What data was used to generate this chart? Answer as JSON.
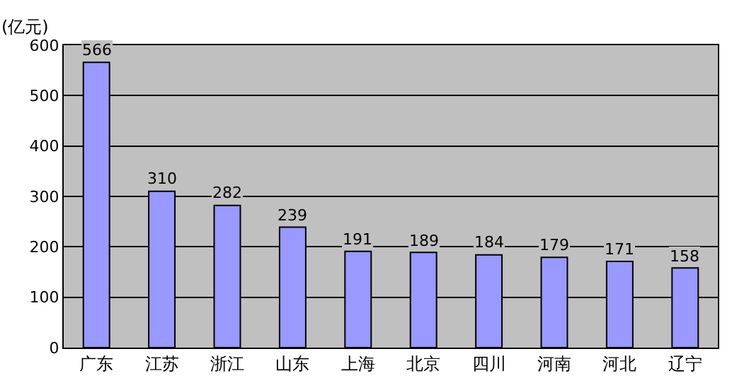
{
  "chart_data": {
    "type": "bar",
    "ylabel": "(亿元)",
    "categories": [
      "广东",
      "江苏",
      "浙江",
      "山东",
      "上海",
      "北京",
      "四川",
      "河南",
      "河北",
      "辽宁"
    ],
    "values": [
      566,
      310,
      282,
      239,
      191,
      189,
      184,
      179,
      171,
      158
    ],
    "color": "#9999ff",
    "ylim": [
      0,
      600
    ],
    "yticks": [
      0,
      100,
      200,
      300,
      400,
      500,
      600
    ],
    "grid": "y",
    "data_labels": true
  }
}
